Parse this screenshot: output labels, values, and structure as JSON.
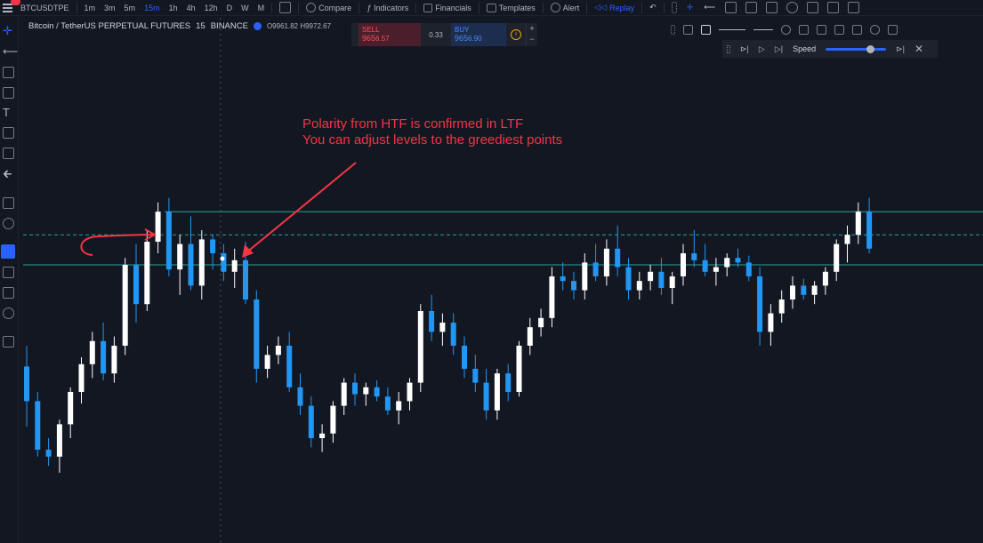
{
  "toolbar": {
    "symbol": "BTCUSDTPE",
    "intervals": [
      "1m",
      "3m",
      "5m",
      "15m",
      "1h",
      "4h",
      "12h",
      "D",
      "W",
      "M"
    ],
    "active_interval": "15m",
    "compare_label": "Compare",
    "indicators_label": "Indicators",
    "financials_label": "Financials",
    "templates_label": "Templates",
    "alert_label": "Alert",
    "replay_label": "Replay",
    "notification_count": "5"
  },
  "legend": {
    "symbol_desc": "Bitcoin / TetherUS PERPETUAL FUTURES",
    "interval": "15",
    "exchange": "BINANCE",
    "ohlc": "O9961.82  H9972.67"
  },
  "trade": {
    "sell_label": "SELL",
    "sell_price_main": "965",
    "sell_price_tail": "6.57",
    "spread": "0.33",
    "buy_label": "BUY",
    "buy_price_main": "965",
    "buy_price_tail": "6.90"
  },
  "replay": {
    "speed_label": "Speed",
    "speed_level": 0.72
  },
  "annotation": {
    "line1": "Polarity from HTF is confirmed in LTF",
    "line2": "You can adjust levels to the greediest points"
  },
  "colors": {
    "background": "#131722",
    "bull": "#ffffff",
    "bear": "#2196f3",
    "level_line": "#26a69a",
    "annotation": "#f23645",
    "accent": "#2962ff"
  },
  "chart_data": {
    "type": "candlestick",
    "candle_count": 78,
    "candles": [
      {
        "o": 51,
        "h": 60,
        "l": 25,
        "c": 36
      },
      {
        "o": 36,
        "h": 40,
        "l": 12,
        "c": 15
      },
      {
        "o": 15,
        "h": 20,
        "l": 8,
        "c": 12
      },
      {
        "o": 12,
        "h": 28,
        "l": 5,
        "c": 26
      },
      {
        "o": 26,
        "h": 42,
        "l": 20,
        "c": 40
      },
      {
        "o": 40,
        "h": 55,
        "l": 35,
        "c": 52
      },
      {
        "o": 52,
        "h": 66,
        "l": 46,
        "c": 62
      },
      {
        "o": 62,
        "h": 70,
        "l": 45,
        "c": 48
      },
      {
        "o": 48,
        "h": 64,
        "l": 44,
        "c": 60
      },
      {
        "o": 60,
        "h": 98,
        "l": 56,
        "c": 95
      },
      {
        "o": 95,
        "h": 104,
        "l": 70,
        "c": 78
      },
      {
        "o": 78,
        "h": 110,
        "l": 75,
        "c": 105
      },
      {
        "o": 105,
        "h": 122,
        "l": 100,
        "c": 118
      },
      {
        "o": 118,
        "h": 124,
        "l": 90,
        "c": 93
      },
      {
        "o": 93,
        "h": 108,
        "l": 82,
        "c": 104
      },
      {
        "o": 104,
        "h": 116,
        "l": 84,
        "c": 86
      },
      {
        "o": 86,
        "h": 110,
        "l": 80,
        "c": 106
      },
      {
        "o": 106,
        "h": 108,
        "l": 93,
        "c": 100
      },
      {
        "o": 100,
        "h": 104,
        "l": 88,
        "c": 92
      },
      {
        "o": 92,
        "h": 102,
        "l": 85,
        "c": 97
      },
      {
        "o": 97,
        "h": 105,
        "l": 78,
        "c": 80
      },
      {
        "o": 80,
        "h": 84,
        "l": 44,
        "c": 50
      },
      {
        "o": 50,
        "h": 60,
        "l": 46,
        "c": 56
      },
      {
        "o": 56,
        "h": 64,
        "l": 52,
        "c": 60
      },
      {
        "o": 60,
        "h": 66,
        "l": 40,
        "c": 42
      },
      {
        "o": 42,
        "h": 48,
        "l": 30,
        "c": 34
      },
      {
        "o": 34,
        "h": 38,
        "l": 16,
        "c": 20
      },
      {
        "o": 20,
        "h": 26,
        "l": 14,
        "c": 22
      },
      {
        "o": 22,
        "h": 36,
        "l": 18,
        "c": 34
      },
      {
        "o": 34,
        "h": 46,
        "l": 30,
        "c": 44
      },
      {
        "o": 44,
        "h": 48,
        "l": 34,
        "c": 39
      },
      {
        "o": 39,
        "h": 44,
        "l": 34,
        "c": 42
      },
      {
        "o": 42,
        "h": 45,
        "l": 36,
        "c": 38
      },
      {
        "o": 38,
        "h": 42,
        "l": 30,
        "c": 32
      },
      {
        "o": 32,
        "h": 40,
        "l": 26,
        "c": 36
      },
      {
        "o": 36,
        "h": 46,
        "l": 32,
        "c": 44
      },
      {
        "o": 44,
        "h": 78,
        "l": 40,
        "c": 75
      },
      {
        "o": 75,
        "h": 82,
        "l": 62,
        "c": 66
      },
      {
        "o": 66,
        "h": 74,
        "l": 60,
        "c": 70
      },
      {
        "o": 70,
        "h": 74,
        "l": 56,
        "c": 60
      },
      {
        "o": 60,
        "h": 64,
        "l": 46,
        "c": 50
      },
      {
        "o": 50,
        "h": 56,
        "l": 40,
        "c": 44
      },
      {
        "o": 44,
        "h": 50,
        "l": 28,
        "c": 32
      },
      {
        "o": 32,
        "h": 50,
        "l": 28,
        "c": 48
      },
      {
        "o": 48,
        "h": 52,
        "l": 36,
        "c": 40
      },
      {
        "o": 40,
        "h": 62,
        "l": 38,
        "c": 60
      },
      {
        "o": 60,
        "h": 72,
        "l": 56,
        "c": 68
      },
      {
        "o": 68,
        "h": 76,
        "l": 64,
        "c": 72
      },
      {
        "o": 72,
        "h": 94,
        "l": 68,
        "c": 90
      },
      {
        "o": 90,
        "h": 96,
        "l": 84,
        "c": 88
      },
      {
        "o": 88,
        "h": 92,
        "l": 80,
        "c": 84
      },
      {
        "o": 84,
        "h": 100,
        "l": 80,
        "c": 96
      },
      {
        "o": 96,
        "h": 104,
        "l": 88,
        "c": 90
      },
      {
        "o": 90,
        "h": 106,
        "l": 86,
        "c": 102
      },
      {
        "o": 102,
        "h": 112,
        "l": 90,
        "c": 94
      },
      {
        "o": 94,
        "h": 98,
        "l": 80,
        "c": 84
      },
      {
        "o": 84,
        "h": 92,
        "l": 80,
        "c": 88
      },
      {
        "o": 88,
        "h": 95,
        "l": 84,
        "c": 92
      },
      {
        "o": 92,
        "h": 98,
        "l": 82,
        "c": 85
      },
      {
        "o": 85,
        "h": 92,
        "l": 78,
        "c": 90
      },
      {
        "o": 90,
        "h": 104,
        "l": 86,
        "c": 100
      },
      {
        "o": 100,
        "h": 110,
        "l": 94,
        "c": 97
      },
      {
        "o": 97,
        "h": 104,
        "l": 90,
        "c": 92
      },
      {
        "o": 92,
        "h": 98,
        "l": 86,
        "c": 94
      },
      {
        "o": 94,
        "h": 100,
        "l": 90,
        "c": 98
      },
      {
        "o": 98,
        "h": 102,
        "l": 94,
        "c": 96
      },
      {
        "o": 96,
        "h": 99,
        "l": 88,
        "c": 90
      },
      {
        "o": 90,
        "h": 94,
        "l": 60,
        "c": 66
      },
      {
        "o": 66,
        "h": 78,
        "l": 60,
        "c": 74
      },
      {
        "o": 74,
        "h": 84,
        "l": 70,
        "c": 80
      },
      {
        "o": 80,
        "h": 90,
        "l": 76,
        "c": 86
      },
      {
        "o": 86,
        "h": 89,
        "l": 80,
        "c": 82
      },
      {
        "o": 82,
        "h": 88,
        "l": 78,
        "c": 86
      },
      {
        "o": 86,
        "h": 94,
        "l": 82,
        "c": 92
      },
      {
        "o": 92,
        "h": 106,
        "l": 88,
        "c": 104
      },
      {
        "o": 104,
        "h": 112,
        "l": 96,
        "c": 108
      },
      {
        "o": 108,
        "h": 122,
        "l": 104,
        "c": 118
      },
      {
        "o": 118,
        "h": 124,
        "l": 100,
        "c": 102
      }
    ],
    "levels": [
      118,
      95
    ],
    "dashed_level": 108
  }
}
